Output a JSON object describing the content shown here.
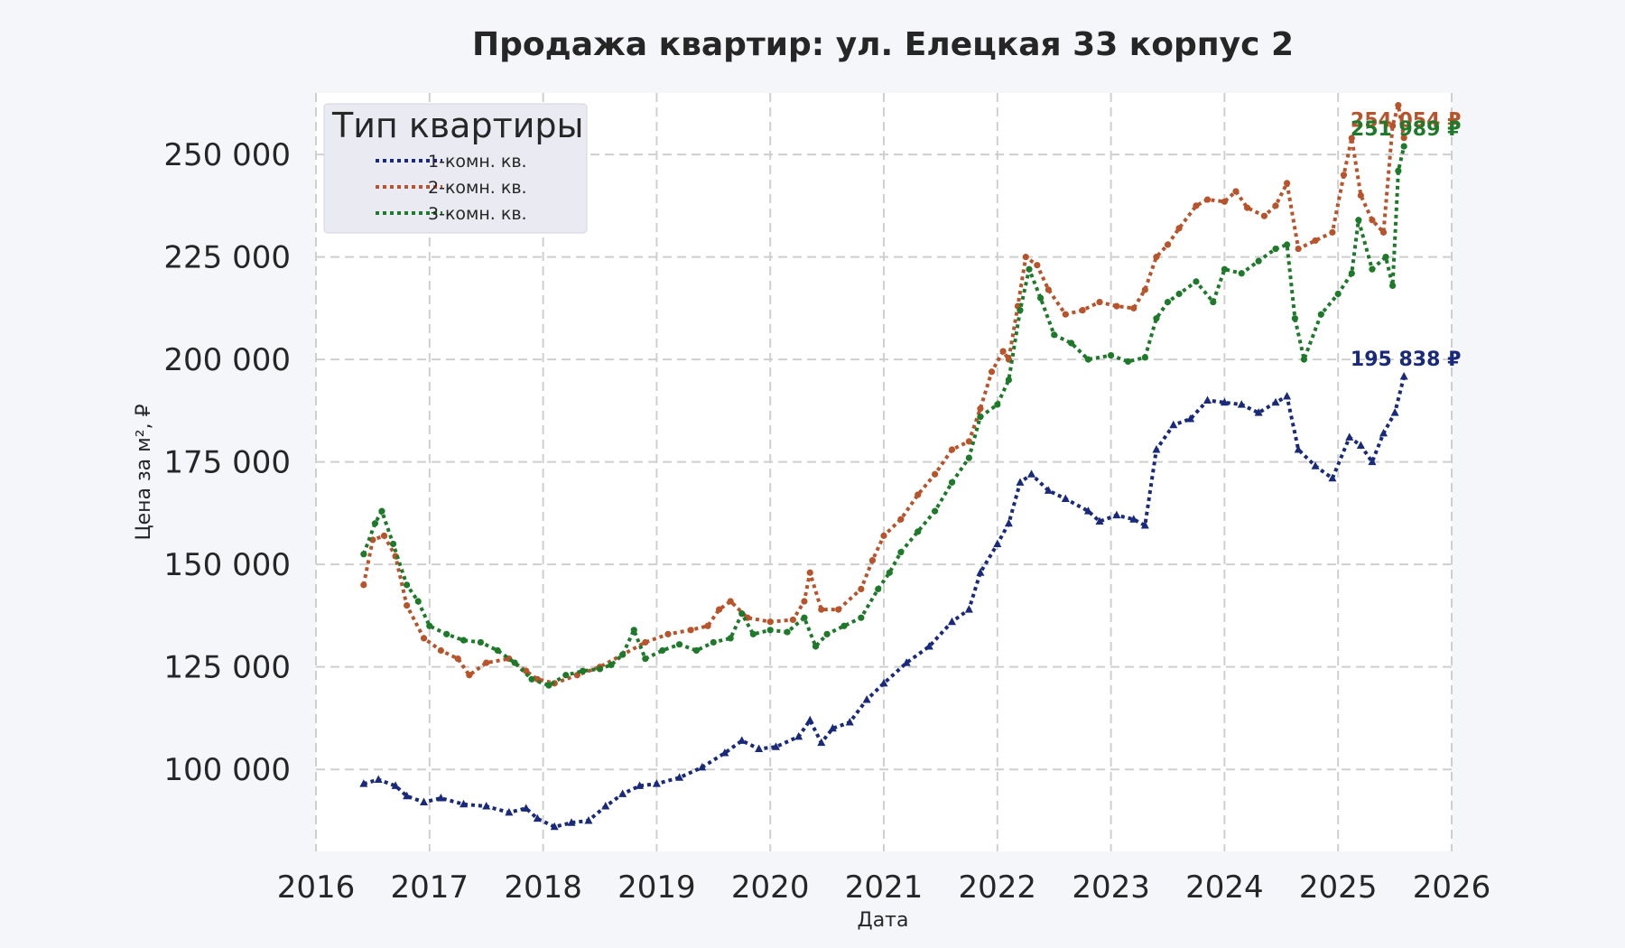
{
  "chart_data": {
    "type": "line",
    "title": "Продажа квартир: ул. Елецкая 33 корпус 2",
    "xlabel": "Дата",
    "ylabel": "Цена за м², ₽",
    "xlim": [
      2016,
      2026
    ],
    "ylim": [
      80000,
      265000
    ],
    "x_ticks": [
      "2016",
      "2017",
      "2018",
      "2019",
      "2020",
      "2021",
      "2022",
      "2023",
      "2024",
      "2025",
      "2026"
    ],
    "y_ticks": [
      "100 000",
      "125 000",
      "150 000",
      "175 000",
      "200 000",
      "225 000",
      "250 000"
    ],
    "grid": true,
    "legend": {
      "title": "Тип квартиры",
      "position": "top-left"
    },
    "series": [
      {
        "name": "1-комн. кв.",
        "color": "#1a2a7a",
        "marker": "triangle",
        "end_label": "195 838 ₽",
        "points": [
          [
            2016.42,
            96500
          ],
          [
            2016.55,
            97500
          ],
          [
            2016.7,
            96000
          ],
          [
            2016.8,
            93500
          ],
          [
            2016.95,
            92000
          ],
          [
            2017.1,
            93000
          ],
          [
            2017.3,
            91500
          ],
          [
            2017.5,
            91000
          ],
          [
            2017.7,
            89500
          ],
          [
            2017.85,
            90500
          ],
          [
            2017.95,
            88000
          ],
          [
            2018.1,
            86000
          ],
          [
            2018.25,
            87000
          ],
          [
            2018.4,
            87500
          ],
          [
            2018.55,
            91000
          ],
          [
            2018.7,
            94000
          ],
          [
            2018.85,
            96000
          ],
          [
            2019.0,
            96500
          ],
          [
            2019.2,
            98000
          ],
          [
            2019.4,
            100500
          ],
          [
            2019.6,
            104000
          ],
          [
            2019.75,
            107000
          ],
          [
            2019.9,
            105000
          ],
          [
            2020.05,
            105500
          ],
          [
            2020.25,
            108000
          ],
          [
            2020.35,
            112000
          ],
          [
            2020.45,
            106500
          ],
          [
            2020.55,
            110000
          ],
          [
            2020.7,
            111500
          ],
          [
            2020.85,
            117000
          ],
          [
            2021.0,
            121000
          ],
          [
            2021.2,
            126000
          ],
          [
            2021.4,
            130000
          ],
          [
            2021.6,
            136000
          ],
          [
            2021.75,
            139000
          ],
          [
            2021.85,
            148000
          ],
          [
            2022.0,
            155000
          ],
          [
            2022.1,
            160000
          ],
          [
            2022.2,
            170000
          ],
          [
            2022.3,
            172000
          ],
          [
            2022.45,
            168000
          ],
          [
            2022.6,
            166000
          ],
          [
            2022.8,
            163000
          ],
          [
            2022.9,
            160500
          ],
          [
            2023.05,
            162000
          ],
          [
            2023.2,
            161000
          ],
          [
            2023.3,
            159500
          ],
          [
            2023.4,
            178000
          ],
          [
            2023.55,
            184000
          ],
          [
            2023.7,
            185500
          ],
          [
            2023.85,
            190000
          ],
          [
            2024.0,
            189500
          ],
          [
            2024.15,
            189000
          ],
          [
            2024.3,
            187000
          ],
          [
            2024.45,
            189500
          ],
          [
            2024.55,
            191000
          ],
          [
            2024.65,
            178000
          ],
          [
            2024.8,
            174000
          ],
          [
            2024.95,
            171000
          ],
          [
            2025.1,
            181000
          ],
          [
            2025.2,
            179000
          ],
          [
            2025.3,
            175000
          ],
          [
            2025.4,
            182000
          ],
          [
            2025.5,
            187000
          ],
          [
            2025.58,
            195838
          ]
        ]
      },
      {
        "name": "2-комн. кв.",
        "color": "#b8542c",
        "marker": "dot",
        "end_label": "254 054 ₽",
        "points": [
          [
            2016.42,
            145000
          ],
          [
            2016.5,
            156000
          ],
          [
            2016.6,
            157000
          ],
          [
            2016.7,
            152000
          ],
          [
            2016.8,
            140000
          ],
          [
            2016.95,
            132000
          ],
          [
            2017.1,
            129000
          ],
          [
            2017.25,
            127000
          ],
          [
            2017.35,
            123000
          ],
          [
            2017.5,
            126000
          ],
          [
            2017.7,
            127000
          ],
          [
            2017.85,
            124000
          ],
          [
            2017.95,
            122000
          ],
          [
            2018.1,
            121000
          ],
          [
            2018.3,
            123000
          ],
          [
            2018.5,
            125000
          ],
          [
            2018.7,
            128000
          ],
          [
            2018.9,
            131000
          ],
          [
            2019.1,
            133000
          ],
          [
            2019.3,
            134000
          ],
          [
            2019.45,
            135000
          ],
          [
            2019.55,
            139000
          ],
          [
            2019.65,
            141000
          ],
          [
            2019.8,
            137000
          ],
          [
            2020.0,
            136000
          ],
          [
            2020.2,
            136500
          ],
          [
            2020.3,
            141000
          ],
          [
            2020.35,
            148000
          ],
          [
            2020.45,
            139000
          ],
          [
            2020.6,
            139000
          ],
          [
            2020.8,
            144000
          ],
          [
            2020.9,
            151000
          ],
          [
            2021.0,
            157000
          ],
          [
            2021.15,
            161000
          ],
          [
            2021.3,
            167000
          ],
          [
            2021.45,
            172000
          ],
          [
            2021.6,
            178000
          ],
          [
            2021.75,
            180000
          ],
          [
            2021.85,
            188000
          ],
          [
            2021.95,
            197000
          ],
          [
            2022.05,
            202000
          ],
          [
            2022.1,
            200000
          ],
          [
            2022.18,
            213000
          ],
          [
            2022.25,
            225000
          ],
          [
            2022.35,
            223000
          ],
          [
            2022.45,
            217000
          ],
          [
            2022.6,
            211000
          ],
          [
            2022.75,
            212000
          ],
          [
            2022.9,
            214000
          ],
          [
            2023.05,
            213000
          ],
          [
            2023.2,
            212500
          ],
          [
            2023.3,
            217000
          ],
          [
            2023.4,
            225000
          ],
          [
            2023.5,
            228000
          ],
          [
            2023.6,
            232000
          ],
          [
            2023.75,
            237500
          ],
          [
            2023.85,
            239000
          ],
          [
            2024.0,
            238500
          ],
          [
            2024.1,
            241000
          ],
          [
            2024.2,
            237000
          ],
          [
            2024.35,
            235000
          ],
          [
            2024.45,
            237500
          ],
          [
            2024.55,
            243000
          ],
          [
            2024.65,
            227000
          ],
          [
            2024.8,
            229000
          ],
          [
            2024.95,
            231000
          ],
          [
            2025.05,
            245000
          ],
          [
            2025.12,
            254000
          ],
          [
            2025.2,
            240000
          ],
          [
            2025.3,
            234000
          ],
          [
            2025.4,
            231000
          ],
          [
            2025.48,
            257000
          ],
          [
            2025.53,
            262000
          ],
          [
            2025.58,
            254054
          ]
        ]
      },
      {
        "name": "3-комн. кв.",
        "color": "#1e7a2a",
        "marker": "dot",
        "end_label": "251 989 ₽",
        "points": [
          [
            2016.42,
            152500
          ],
          [
            2016.52,
            160000
          ],
          [
            2016.58,
            163000
          ],
          [
            2016.68,
            155000
          ],
          [
            2016.8,
            145000
          ],
          [
            2016.9,
            141000
          ],
          [
            2017.0,
            135000
          ],
          [
            2017.15,
            133000
          ],
          [
            2017.3,
            131500
          ],
          [
            2017.45,
            131000
          ],
          [
            2017.6,
            129000
          ],
          [
            2017.75,
            126000
          ],
          [
            2017.9,
            122000
          ],
          [
            2018.05,
            120500
          ],
          [
            2018.2,
            123000
          ],
          [
            2018.35,
            124000
          ],
          [
            2018.5,
            124500
          ],
          [
            2018.6,
            125500
          ],
          [
            2018.7,
            128000
          ],
          [
            2018.8,
            134000
          ],
          [
            2018.9,
            127000
          ],
          [
            2019.05,
            129000
          ],
          [
            2019.2,
            130500
          ],
          [
            2019.35,
            129000
          ],
          [
            2019.5,
            131000
          ],
          [
            2019.65,
            132000
          ],
          [
            2019.75,
            138000
          ],
          [
            2019.85,
            133000
          ],
          [
            2020.0,
            134000
          ],
          [
            2020.15,
            133500
          ],
          [
            2020.3,
            137000
          ],
          [
            2020.4,
            130000
          ],
          [
            2020.5,
            133000
          ],
          [
            2020.65,
            135000
          ],
          [
            2020.8,
            137000
          ],
          [
            2020.95,
            144000
          ],
          [
            2021.05,
            148000
          ],
          [
            2021.15,
            153000
          ],
          [
            2021.3,
            158000
          ],
          [
            2021.45,
            163000
          ],
          [
            2021.6,
            170000
          ],
          [
            2021.75,
            176000
          ],
          [
            2021.85,
            186000
          ],
          [
            2022.0,
            189000
          ],
          [
            2022.1,
            195000
          ],
          [
            2022.2,
            212000
          ],
          [
            2022.28,
            222000
          ],
          [
            2022.38,
            215000
          ],
          [
            2022.5,
            206000
          ],
          [
            2022.65,
            204000
          ],
          [
            2022.8,
            200000
          ],
          [
            2023.0,
            201000
          ],
          [
            2023.15,
            199500
          ],
          [
            2023.3,
            200500
          ],
          [
            2023.4,
            210000
          ],
          [
            2023.5,
            214000
          ],
          [
            2023.6,
            216000
          ],
          [
            2023.75,
            219000
          ],
          [
            2023.9,
            214000
          ],
          [
            2024.0,
            222000
          ],
          [
            2024.15,
            221000
          ],
          [
            2024.3,
            224000
          ],
          [
            2024.45,
            227000
          ],
          [
            2024.55,
            228000
          ],
          [
            2024.62,
            210000
          ],
          [
            2024.7,
            200000
          ],
          [
            2024.85,
            211000
          ],
          [
            2025.0,
            216000
          ],
          [
            2025.12,
            221000
          ],
          [
            2025.18,
            234000
          ],
          [
            2025.3,
            222000
          ],
          [
            2025.42,
            225000
          ],
          [
            2025.48,
            218000
          ],
          [
            2025.53,
            246000
          ],
          [
            2025.58,
            251989
          ]
        ]
      }
    ]
  }
}
